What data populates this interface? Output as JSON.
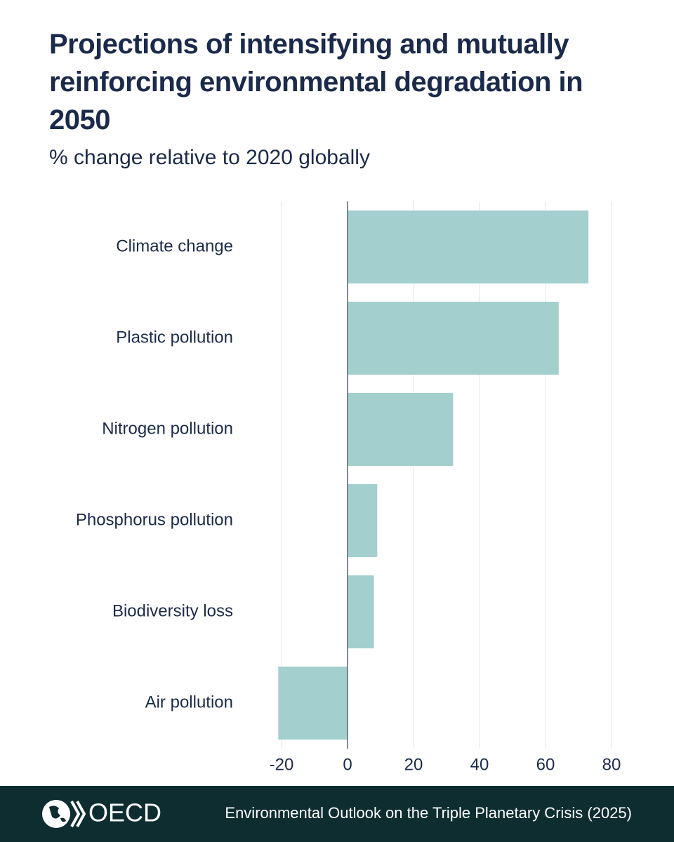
{
  "chart_data": {
    "type": "bar",
    "orientation": "horizontal",
    "title": "Projections of intensifying and mutually reinforcing environmental degradation in 2050",
    "subtitle": "% change relative to 2020 globally",
    "categories": [
      "Climate change",
      "Plastic pollution",
      "Nitrogen pollution",
      "Phosphorus pollution",
      "Biodiversity loss",
      "Air pollution"
    ],
    "values": [
      73,
      64,
      32,
      9,
      8,
      -21
    ],
    "color": "#a3cfcf",
    "xlim": [
      -22,
      84
    ],
    "xticks": [
      -20,
      0,
      20,
      40,
      60,
      80
    ],
    "grid": true
  },
  "footer": {
    "logo": "OECD",
    "source": "Environmental Outlook on the Triple Planetary Crisis (2025)"
  }
}
